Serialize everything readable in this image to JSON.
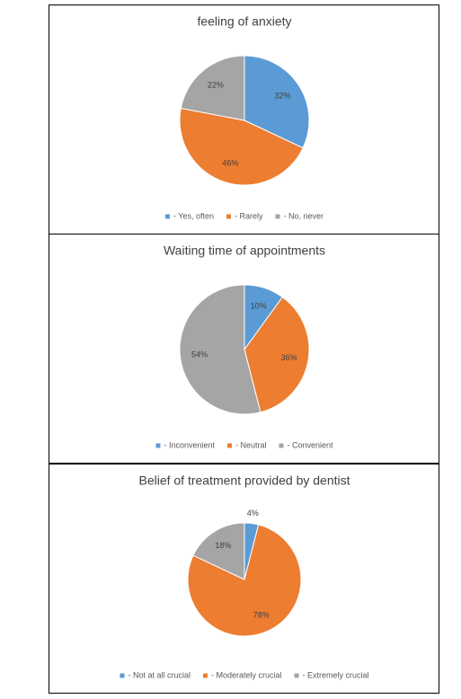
{
  "chart_data": [
    {
      "type": "pie",
      "title": "feeling of anxiety",
      "categories": [
        "- Yes, often",
        "- Rarely",
        "- No, never"
      ],
      "values": [
        32,
        46,
        22
      ],
      "value_labels": [
        "32%",
        "46%",
        "22%"
      ],
      "colors": [
        "#5b9bd5",
        "#ed7d31",
        "#a5a5a5"
      ]
    },
    {
      "type": "pie",
      "title": "Waiting time of appointments",
      "categories": [
        "- Inconvenient",
        "- Neutral",
        "- Convenient"
      ],
      "values": [
        10,
        36,
        54
      ],
      "value_labels": [
        "10%",
        "36%",
        "54%"
      ],
      "colors": [
        "#5b9bd5",
        "#ed7d31",
        "#a5a5a5"
      ]
    },
    {
      "type": "pie",
      "title": "Belief of treatment provided by dentist",
      "categories": [
        "- Not at all crucial",
        "- Moderately crucial",
        "- Extremely crucial"
      ],
      "values": [
        4,
        78,
        18
      ],
      "value_labels": [
        "4%",
        "78%",
        "18%"
      ],
      "colors": [
        "#5b9bd5",
        "#ed7d31",
        "#a5a5a5"
      ]
    }
  ]
}
